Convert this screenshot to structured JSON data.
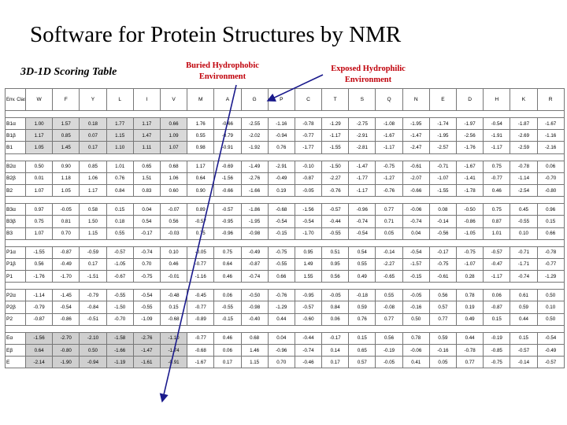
{
  "title": "Software for Protein Structures by NMR",
  "subtitle": "3D-1D Scoring Table",
  "callouts": {
    "buried": "Buried Hydrophobic Environment",
    "exposed": "Exposed Hydrophilic Environment"
  },
  "colors": {
    "callout": "#c0000a",
    "highlight": "#d9d9d9"
  },
  "table": {
    "env_header": "Env. Class",
    "columns": [
      "W",
      "F",
      "Y",
      "L",
      "I",
      "V",
      "M",
      "A",
      "G",
      "P",
      "C",
      "T",
      "S",
      "Q",
      "N",
      "E",
      "D",
      "H",
      "K",
      "R"
    ],
    "groups": [
      [
        {
          "label": "B1α",
          "values": [
            "1.00",
            "1.57",
            "0.18",
            "1.77",
            "1.17",
            "0.66",
            "1.76",
            "-0.66",
            "-2.55",
            "-1.16",
            "-0.78",
            "-1.29",
            "-2.75",
            "-1.08",
            "-1.95",
            "-1.74",
            "-1.97",
            "-0.54",
            "-1.87",
            "-1.67"
          ]
        },
        {
          "label": "B1β",
          "values": [
            "1.17",
            "0.85",
            "0.07",
            "1.15",
            "1.47",
            "1.09",
            "0.55",
            "-0.79",
            "-2.02",
            "-0.94",
            "-0.77",
            "-1.17",
            "-2.91",
            "-1.67",
            "-1.47",
            "-1.95",
            "-2.56",
            "-1.91",
            "-2.69",
            "-1.16"
          ]
        },
        {
          "label": "B1",
          "values": [
            "1.05",
            "1.45",
            "0.17",
            "1.10",
            "1.11",
            "1.07",
            "0.98",
            "-0.91",
            "-1.92",
            "0.76",
            "-1.77",
            "-1.55",
            "-2.81",
            "-1.17",
            "-2.47",
            "-2.57",
            "-1.76",
            "-1.17",
            "-2.59",
            "-2.16"
          ]
        }
      ],
      [
        {
          "label": "B2α",
          "values": [
            "0.50",
            "0.90",
            "0.85",
            "1.01",
            "0.65",
            "0.68",
            "1.17",
            "-0.69",
            "-1.49",
            "-2.91",
            "-0.10",
            "-1.50",
            "-1.47",
            "-0.75",
            "-0.61",
            "-0.71",
            "-1.67",
            "0.75",
            "-0.78",
            "0.06"
          ]
        },
        {
          "label": "B2β",
          "values": [
            "0.01",
            "1.18",
            "1.06",
            "0.76",
            "1.51",
            "1.06",
            "0.64",
            "-1.56",
            "-2.76",
            "-0.49",
            "-0.87",
            "-2.27",
            "-1.77",
            "-1.27",
            "-2.07",
            "-1.07",
            "-1.41",
            "-0.77",
            "-1.14",
            "-0.70"
          ]
        },
        {
          "label": "B2",
          "values": [
            "1.07",
            "1.05",
            "1.17",
            "0.84",
            "0.83",
            "0.60",
            "0.90",
            "-0.66",
            "-1.66",
            "0.19",
            "-0.05",
            "-0.76",
            "-1.17",
            "-0.76",
            "-0.66",
            "-1.55",
            "-1.78",
            "0.46",
            "-2.54",
            "-0.80"
          ]
        }
      ],
      [
        {
          "label": "B3α",
          "values": [
            "0.97",
            "-0.05",
            "0.58",
            "0.15",
            "0.04",
            "-0.07",
            "0.89",
            "-0.57",
            "-1.86",
            "-0.68",
            "-1.56",
            "-0.57",
            "-0.96",
            "0.77",
            "-0.06",
            "0.08",
            "-0.50",
            "0.75",
            "0.45",
            "0.96"
          ]
        },
        {
          "label": "B3β",
          "values": [
            "0.75",
            "0.81",
            "1.50",
            "0.18",
            "0.54",
            "0.56",
            "-0.57",
            "-0.95",
            "-1.95",
            "-0.54",
            "-0.54",
            "-0.44",
            "-0.74",
            "0.71",
            "-0.74",
            "-0.14",
            "-0.86",
            "0.87",
            "-0.55",
            "0.15"
          ]
        },
        {
          "label": "B3",
          "values": [
            "1.07",
            "0.70",
            "1.15",
            "0.55",
            "-0.17",
            "-0.03",
            "0.75",
            "-0.96",
            "-0.98",
            "-0.15",
            "-1.70",
            "-0.55",
            "-0.54",
            "0.05",
            "0.04",
            "-0.56",
            "-1.05",
            "1.01",
            "0.10",
            "0.66"
          ]
        }
      ],
      [
        {
          "label": "P1α",
          "values": [
            "-1.55",
            "-0.87",
            "-0.59",
            "-0.57",
            "-0.74",
            "0.10",
            "-0.05",
            "0.75",
            "-0.49",
            "-0.75",
            "0.95",
            "0.51",
            "0.54",
            "-0.14",
            "-0.54",
            "-0.17",
            "-0.75",
            "-0.57",
            "-0.71",
            "-0.78"
          ]
        },
        {
          "label": "P1β",
          "values": [
            "0.56",
            "-0.49",
            "0.17",
            "-1.05",
            "0.70",
            "0.46",
            "-0.77",
            "0.64",
            "-0.87",
            "-0.55",
            "1.49",
            "0.95",
            "0.55",
            "-2.27",
            "-1.57",
            "-0.75",
            "-1.07",
            "-0.47",
            "-1.71",
            "-0.77"
          ]
        },
        {
          "label": "P1",
          "values": [
            "-1.76",
            "-1.70",
            "-1.51",
            "-0.67",
            "-0.75",
            "-0.01",
            "-1.16",
            "0.46",
            "-0.74",
            "0.66",
            "1.55",
            "0.56",
            "0.49",
            "-0.65",
            "-0.15",
            "-0.61",
            "0.28",
            "-1.17",
            "-0.74",
            "-1.29"
          ]
        }
      ],
      [
        {
          "label": "P2α",
          "values": [
            "-1.14",
            "-1.45",
            "-0.79",
            "-0.55",
            "-0.54",
            "-0.48",
            "-0.45",
            "0.06",
            "-0.50",
            "-0.76",
            "-0.95",
            "-0.05",
            "-0.18",
            "0.55",
            "-0.05",
            "0.56",
            "0.78",
            "0.06",
            "0.61",
            "0.50"
          ]
        },
        {
          "label": "P2β",
          "values": [
            "-0.79",
            "-0.54",
            "-0.84",
            "-1.50",
            "-0.55",
            "0.15",
            "-0.77",
            "-0.55",
            "-0.98",
            "-1.29",
            "-0.57",
            "0.84",
            "0.59",
            "-0.08",
            "-0.16",
            "0.57",
            "0.19",
            "-0.87",
            "0.59",
            "0.10"
          ]
        },
        {
          "label": "P2",
          "values": [
            "-0.87",
            "-0.86",
            "-0.51",
            "-0.70",
            "-1.09",
            "-0.68",
            "-0.89",
            "-0.15",
            "-0.40",
            "0.44",
            "-0.60",
            "0.06",
            "0.76",
            "0.77",
            "0.50",
            "0.77",
            "0.49",
            "0.15",
            "0.44",
            "0.50"
          ]
        }
      ],
      [
        {
          "label": "Eα",
          "values": [
            "-1.56",
            "-2.70",
            "-2.10",
            "-1.58",
            "-2.76",
            "-1.10",
            "-0.77",
            "0.46",
            "0.68",
            "0.04",
            "-0.44",
            "-0.17",
            "0.15",
            "0.56",
            "0.78",
            "0.59",
            "0.44",
            "-0.19",
            "0.15",
            "-0.54"
          ]
        },
        {
          "label": "Eβ",
          "values": [
            "0.64",
            "-0.80",
            "0.50",
            "-1.66",
            "-1.47",
            "-1.74",
            "-0.68",
            "0.06",
            "1.46",
            "-0.96",
            "-0.74",
            "0.14",
            "0.65",
            "-0.19",
            "-0.06",
            "-0.16",
            "-0.78",
            "-0.85",
            "-0.57",
            "-0.49"
          ]
        },
        {
          "label": "E",
          "values": [
            "-2.14",
            "-1.90",
            "-0.94",
            "-1.19",
            "-1.61",
            "-0.91",
            "-1.67",
            "0.17",
            "1.15",
            "0.70",
            "-0.46",
            "0.17",
            "0.57",
            "-0.05",
            "0.41",
            "0.05",
            "0.77",
            "-0.75",
            "-0.14",
            "-0.57"
          ]
        }
      ]
    ]
  }
}
